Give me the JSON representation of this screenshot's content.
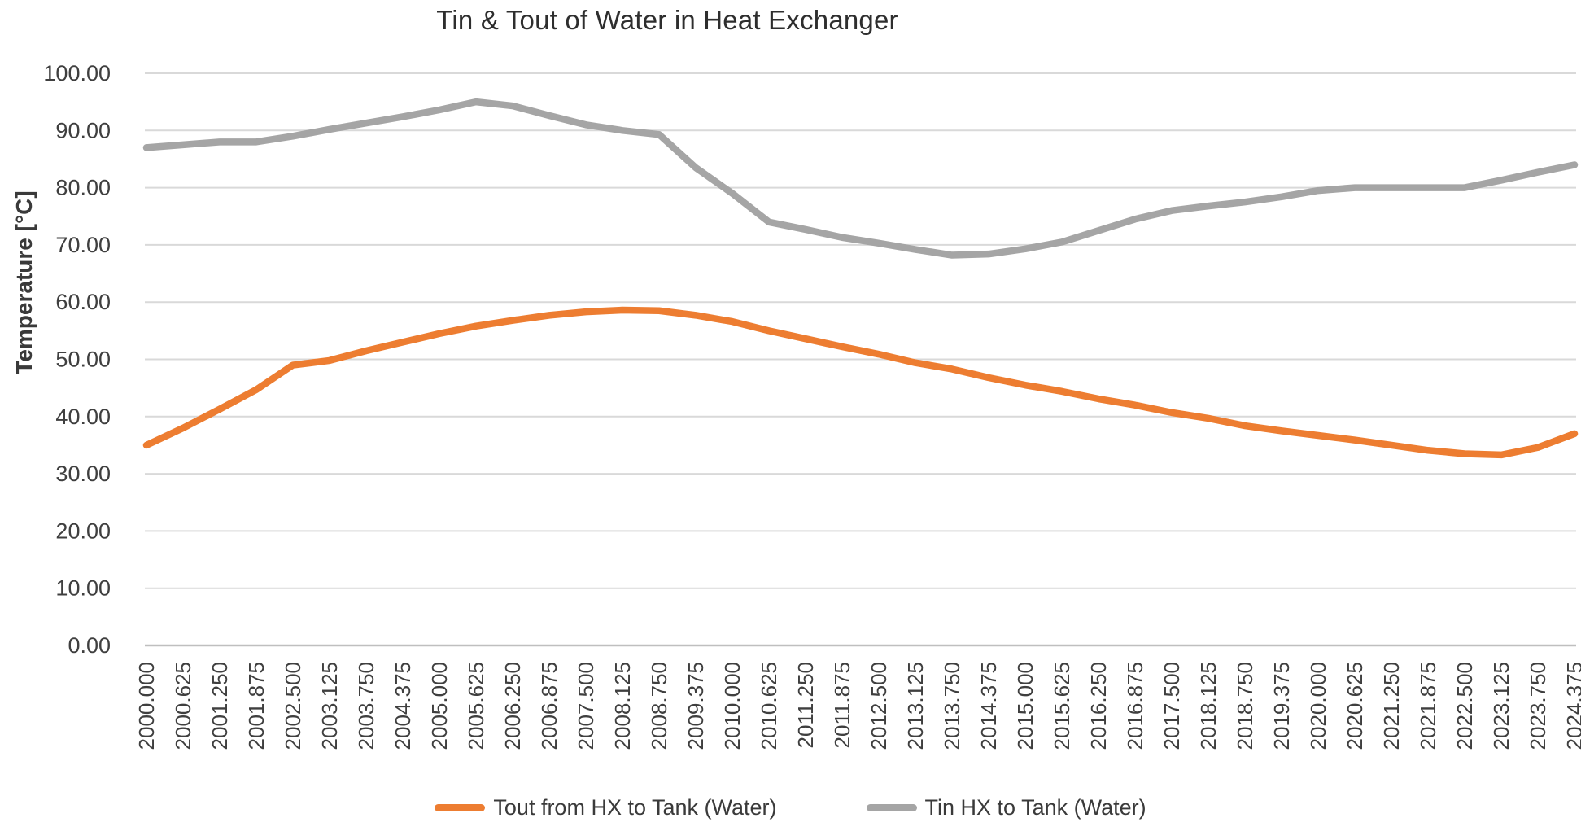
{
  "title": "Tin & Tout of Water in Heat Exchanger",
  "chart_data": {
    "type": "line",
    "title": "Tin & Tout of Water in Heat Exchanger",
    "ylabel": "Temperature  [°C]",
    "xlabel": "",
    "ylim": [
      0,
      100
    ],
    "grid": "horizontal",
    "legend_position": "bottom",
    "yticks": [
      "0.00",
      "10.00",
      "20.00",
      "30.00",
      "40.00",
      "50.00",
      "60.00",
      "70.00",
      "80.00",
      "90.00",
      "100.00"
    ],
    "x": [
      "2000.000",
      "2000.625",
      "2001.250",
      "2001.875",
      "2002.500",
      "2003.125",
      "2003.750",
      "2004.375",
      "2005.000",
      "2005.625",
      "2006.250",
      "2006.875",
      "2007.500",
      "2008.125",
      "2008.750",
      "2009.375",
      "2010.000",
      "2010.625",
      "2011.250",
      "2011.875",
      "2012.500",
      "2013.125",
      "2013.750",
      "2014.375",
      "2015.000",
      "2015.625",
      "2016.250",
      "2016.875",
      "2017.500",
      "2018.125",
      "2018.750",
      "2019.375",
      "2020.000",
      "2020.625",
      "2021.250",
      "2021.875",
      "2022.500",
      "2023.125",
      "2023.750",
      "2024.375"
    ],
    "series": [
      {
        "id": "tout",
        "name": "Tout from HX to Tank (Water)",
        "color": "#ED7D31",
        "values": [
          35.0,
          38.0,
          41.3,
          44.7,
          49.0,
          49.8,
          51.5,
          53.0,
          54.5,
          55.8,
          56.8,
          57.7,
          58.3,
          58.6,
          58.5,
          57.7,
          56.6,
          55.0,
          53.6,
          52.2,
          50.9,
          49.4,
          48.3,
          46.8,
          45.5,
          44.4,
          43.1,
          42.0,
          40.7,
          39.7,
          38.4,
          37.5,
          36.7,
          35.9,
          35.0,
          34.1,
          33.5,
          33.3,
          34.6,
          37.0
        ]
      },
      {
        "id": "tin",
        "name": "Tin HX to Tank (Water)",
        "color": "#A5A5A5",
        "values": [
          87.0,
          87.5,
          88.0,
          88.0,
          89.0,
          90.2,
          91.3,
          92.4,
          93.6,
          95.0,
          94.3,
          92.6,
          91.0,
          90.0,
          89.3,
          83.5,
          79.0,
          74.0,
          72.7,
          71.3,
          70.3,
          69.2,
          68.2,
          68.4,
          69.3,
          70.5,
          72.5,
          74.5,
          76.0,
          76.8,
          77.5,
          78.4,
          79.5,
          80.0,
          80.0,
          80.0,
          80.0,
          81.3,
          82.7,
          84.0
        ]
      }
    ],
    "style": {
      "gridline_color": "#D9D9D9",
      "axis_line_color": "#BFBFBF",
      "tick_label_color": "#3f3f3f",
      "line_width": 8.5
    }
  }
}
